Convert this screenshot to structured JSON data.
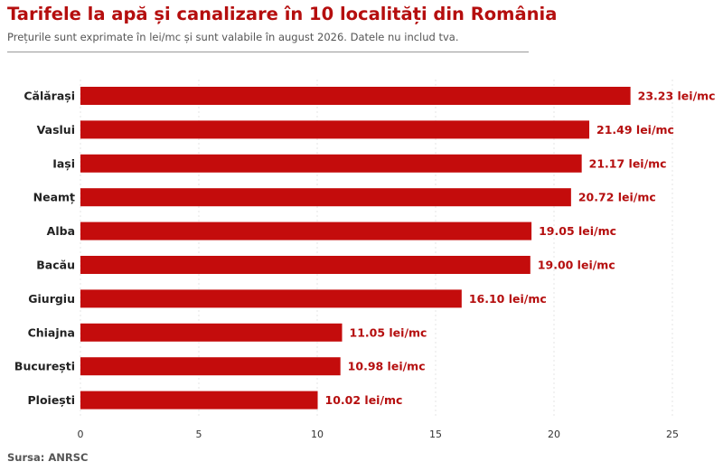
{
  "header": {
    "title": "Tarifele la apă și canalizare în 10 localități din România",
    "subtitle": "Prețurile sunt exprimate în lei/mc și sunt valabile în august 2026. Datele nu includ tva."
  },
  "footer": {
    "source": "Sursa: ANRSC"
  },
  "colors": {
    "bar": "#c40c0c",
    "value_label": "#b50e0e",
    "title": "#b50e0e"
  },
  "chart_data": {
    "type": "bar",
    "orientation": "horizontal",
    "categories": [
      "Călărași",
      "Vaslui",
      "Iași",
      "Neamț",
      "Alba",
      "Bacău",
      "Giurgiu",
      "Chiajna",
      "București",
      "Ploiești"
    ],
    "values": [
      23.23,
      21.49,
      21.17,
      20.72,
      19.05,
      19.0,
      16.1,
      11.05,
      10.98,
      10.02
    ],
    "value_labels": [
      "23.23 lei/mc",
      "21.49 lei/mc",
      "21.17 lei/mc",
      "20.72 lei/mc",
      "19.05 lei/mc",
      "19.00 lei/mc",
      "16.10 lei/mc",
      "11.05 lei/mc",
      "10.98 lei/mc",
      "10.02 lei/mc"
    ],
    "x_ticks": [
      0,
      5,
      10,
      15,
      20,
      25
    ],
    "xlim": [
      0,
      26.5
    ],
    "grid": true,
    "legend": "none"
  }
}
